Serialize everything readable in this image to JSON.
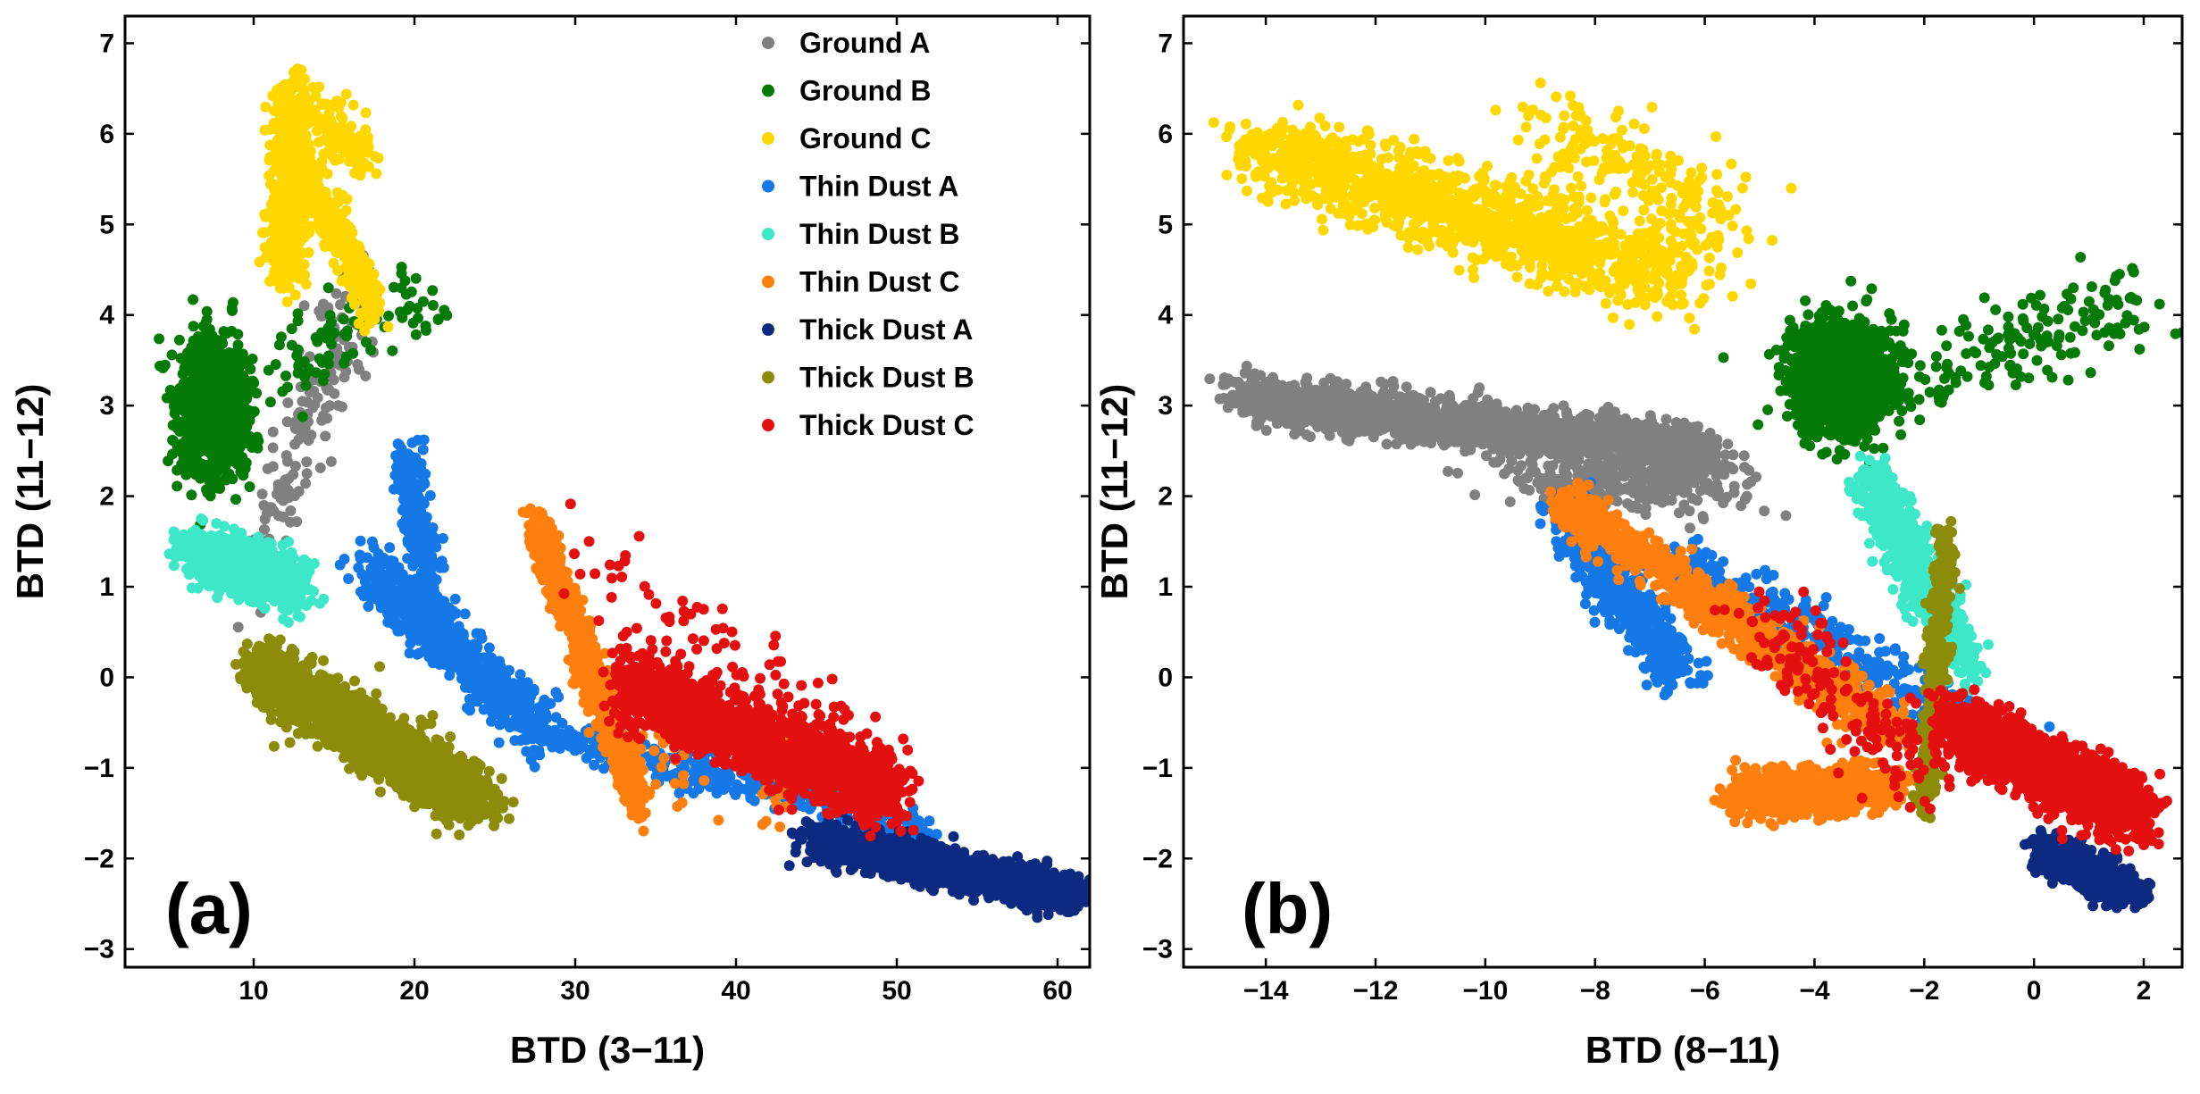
{
  "chart_data": [
    {
      "type": "scatter",
      "panel_label": "(a)",
      "xlabel": "BTD (3−11)",
      "ylabel": "BTD (11−12)",
      "xlim": [
        2,
        62
      ],
      "ylim": [
        -3.2,
        7.3
      ],
      "xticks": [
        10,
        20,
        30,
        40,
        50,
        60
      ],
      "yticks": [
        -3,
        -2,
        -1,
        0,
        1,
        2,
        3,
        4,
        5,
        6,
        7
      ],
      "legend_position": "top-right",
      "series": [
        {
          "name": "Ground A",
          "color": "#808080",
          "clusters": [
            {
              "x": [
                10,
                17
              ],
              "y": [
                1.4,
                4.3
              ],
              "n": 160,
              "sd": [
                1.6,
                0.7
              ]
            }
          ]
        },
        {
          "name": "Ground B",
          "color": "#067a06",
          "clusters": [
            {
              "x": [
                7.5,
                7.5
              ],
              "y": [
                3.0,
                3.0
              ],
              "n": 1300,
              "sd": [
                2.0,
                0.7
              ]
            },
            {
              "x": [
                11,
                21
              ],
              "y": [
                3.3,
                4.3
              ],
              "n": 100,
              "sd": [
                1.6,
                0.5
              ]
            }
          ]
        },
        {
          "name": "Ground C",
          "color": "#ffd700",
          "clusters": [
            {
              "x": [
                12,
                12.5
              ],
              "y": [
                4.4,
                6.5
              ],
              "n": 650,
              "sd": [
                1.1,
                0.3
              ]
            },
            {
              "x": [
                13,
                17.5
              ],
              "y": [
                5.7,
                4.1
              ],
              "n": 280,
              "sd": [
                0.8,
                0.3
              ]
            },
            {
              "x": [
                14,
                17
              ],
              "y": [
                6.2,
                5.7
              ],
              "n": 120,
              "sd": [
                1.0,
                0.3
              ]
            }
          ]
        },
        {
          "name": "Thin Dust A",
          "color": "#1478e6",
          "clusters": [
            {
              "x": [
                17,
                28
              ],
              "y": [
                1.2,
                -0.6
              ],
              "n": 700,
              "sd": [
                1.3,
                0.3
              ]
            },
            {
              "x": [
                19.5,
                21
              ],
              "y": [
                2.5,
                0.8
              ],
              "n": 250,
              "sd": [
                0.9,
                0.25
              ]
            },
            {
              "x": [
                28,
                52
              ],
              "y": [
                -0.6,
                -1.7
              ],
              "n": 450,
              "sd": [
                1.5,
                0.2
              ]
            }
          ]
        },
        {
          "name": "Thin Dust B",
          "color": "#3de8c8",
          "clusters": [
            {
              "x": [
                6,
                13
              ],
              "y": [
                1.4,
                1.0
              ],
              "n": 700,
              "sd": [
                1.3,
                0.3
              ]
            }
          ]
        },
        {
          "name": "Thin Dust C",
          "color": "#ff7f0e",
          "clusters": [
            {
              "x": [
                27.5,
                34
              ],
              "y": [
                1.7,
                -1.4
              ],
              "n": 700,
              "sd": [
                0.8,
                0.25
              ]
            },
            {
              "x": [
                34,
                45
              ],
              "y": [
                -0.8,
                -1.2
              ],
              "n": 50,
              "sd": [
                2.5,
                0.5
              ]
            }
          ]
        },
        {
          "name": "Thick Dust A",
          "color": "#0b2a80",
          "clusters": [
            {
              "x": [
                45,
                61
              ],
              "y": [
                -1.8,
                -2.4
              ],
              "n": 1500,
              "sd": [
                1.5,
                0.2
              ]
            }
          ]
        },
        {
          "name": "Thick Dust B",
          "color": "#8c8c0a",
          "clusters": [
            {
              "x": [
                10.5,
                24
              ],
              "y": [
                0.1,
                -1.4
              ],
              "n": 2200,
              "sd": [
                1.8,
                0.3
              ]
            }
          ]
        },
        {
          "name": "Thick Dust C",
          "color": "#e41010",
          "clusters": [
            {
              "x": [
                33,
                50
              ],
              "y": [
                -0.1,
                -1.3
              ],
              "n": 1700,
              "sd": [
                1.5,
                0.4
              ]
            },
            {
              "x": [
                30,
                48
              ],
              "y": [
                1.4,
                -0.9
              ],
              "n": 90,
              "sd": [
                2.0,
                0.6
              ]
            }
          ]
        }
      ]
    },
    {
      "type": "scatter",
      "panel_label": "(b)",
      "xlabel": "BTD (8−11)",
      "ylabel": "BTD (11−12)",
      "xlim": [
        -15.5,
        2.7
      ],
      "ylim": [
        -3.2,
        7.3
      ],
      "xticks": [
        -14,
        -12,
        -10,
        -8,
        -6,
        -4,
        -2,
        0,
        2
      ],
      "yticks": [
        -3,
        -2,
        -1,
        0,
        1,
        2,
        3,
        4,
        5,
        6,
        7
      ],
      "series": [
        {
          "name": "Ground A",
          "color": "#808080",
          "clusters": [
            {
              "x": [
                -14.5,
                -6
              ],
              "y": [
                3.1,
                2.5
              ],
              "n": 1900,
              "sd": [
                0.45,
                0.25
              ]
            },
            {
              "x": [
                -9,
                -6
              ],
              "y": [
                2.2,
                2.2
              ],
              "n": 400,
              "sd": [
                1.2,
                0.4
              ]
            }
          ]
        },
        {
          "name": "Ground B",
          "color": "#067a06",
          "clusters": [
            {
              "x": [
                -3.5,
                -3.5
              ],
              "y": [
                3.3,
                3.3
              ],
              "n": 1400,
              "sd": [
                0.9,
                0.6
              ]
            },
            {
              "x": [
                -2,
                2
              ],
              "y": [
                3.3,
                4.2
              ],
              "n": 150,
              "sd": [
                1.0,
                0.5
              ]
            }
          ]
        },
        {
          "name": "Ground C",
          "color": "#ffd700",
          "clusters": [
            {
              "x": [
                -14,
                -6.5
              ],
              "y": [
                5.8,
                4.4
              ],
              "n": 1200,
              "sd": [
                1.0,
                0.45
              ]
            },
            {
              "x": [
                -9,
                -5.5
              ],
              "y": [
                6.2,
                5.0
              ],
              "n": 200,
              "sd": [
                1.0,
                0.5
              ]
            }
          ]
        },
        {
          "name": "Thin Dust A",
          "color": "#1478e6",
          "clusters": [
            {
              "x": [
                -8.5,
                -6.5
              ],
              "y": [
                1.8,
                0.0
              ],
              "n": 500,
              "sd": [
                0.5,
                0.25
              ]
            },
            {
              "x": [
                -6.5,
                1
              ],
              "y": [
                1.3,
                -1.3
              ],
              "n": 500,
              "sd": [
                0.8,
                0.25
              ]
            }
          ]
        },
        {
          "name": "Thin Dust B",
          "color": "#3de8c8",
          "clusters": [
            {
              "x": [
                -3,
                -1.2
              ],
              "y": [
                2.2,
                0.1
              ],
              "n": 650,
              "sd": [
                0.4,
                0.3
              ]
            }
          ]
        },
        {
          "name": "Thin Dust C",
          "color": "#ff7f0e",
          "clusters": [
            {
              "x": [
                -8.5,
                -2.5
              ],
              "y": [
                1.9,
                -0.6
              ],
              "n": 900,
              "sd": [
                0.5,
                0.25
              ]
            },
            {
              "x": [
                -5.5,
                -2.5
              ],
              "y": [
                -1.3,
                -1.2
              ],
              "n": 700,
              "sd": [
                0.5,
                0.25
              ]
            }
          ]
        },
        {
          "name": "Thick Dust A",
          "color": "#0b2a80",
          "clusters": [
            {
              "x": [
                0.2,
                1.8
              ],
              "y": [
                -1.9,
                -2.4
              ],
              "n": 700,
              "sd": [
                0.35,
                0.2
              ]
            }
          ]
        },
        {
          "name": "Thick Dust B",
          "color": "#8c8c0a",
          "clusters": [
            {
              "x": [
                -1.6,
                -2.0
              ],
              "y": [
                1.5,
                -1.4
              ],
              "n": 400,
              "sd": [
                0.2,
                0.3
              ]
            }
          ]
        },
        {
          "name": "Thick Dust C",
          "color": "#e41010",
          "clusters": [
            {
              "x": [
                -1.5,
                1.8
              ],
              "y": [
                -0.5,
                -1.5
              ],
              "n": 1700,
              "sd": [
                0.6,
                0.35
              ]
            },
            {
              "x": [
                -5,
                -2
              ],
              "y": [
                0.8,
                -1.2
              ],
              "n": 160,
              "sd": [
                0.8,
                0.4
              ]
            }
          ]
        }
      ]
    }
  ]
}
